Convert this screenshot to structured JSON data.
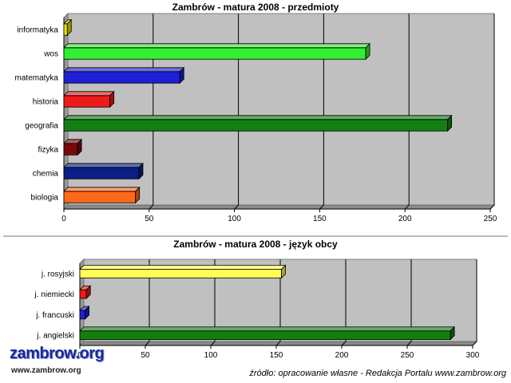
{
  "chart_data": [
    {
      "type": "bar",
      "orientation": "horizontal",
      "title": "Zambrów - matura 2008 - przedmioty",
      "categories": [
        "informatyka",
        "wos",
        "matematyka",
        "historia",
        "geografia",
        "fizyka",
        "chemia",
        "biologia"
      ],
      "values": [
        2,
        177,
        68,
        27,
        225,
        8,
        44,
        42
      ],
      "colors": [
        "#e8e800",
        "#33ee33",
        "#1f1fd6",
        "#ee1a1a",
        "#118011",
        "#7a0a0a",
        "#0c1f86",
        "#ff6a1a"
      ],
      "xlim": [
        0,
        250
      ],
      "xticks": [
        0,
        50,
        100,
        150,
        200,
        250
      ],
      "grid": true,
      "xlabel": "",
      "ylabel": ""
    },
    {
      "type": "bar",
      "orientation": "horizontal",
      "title": "Zambrów - matura 2008 - język obcy",
      "categories": [
        "j. rosyjski",
        "j. niemiecki",
        "j. francuski",
        "j. angielski"
      ],
      "values": [
        154,
        5,
        4,
        283
      ],
      "colors": [
        "#ffff55",
        "#ee1a1a",
        "#1f1fd6",
        "#118011"
      ],
      "xlim": [
        0,
        300
      ],
      "xticks": [
        0,
        50,
        100,
        150,
        200,
        250,
        300
      ],
      "grid": true,
      "xlabel": "",
      "ylabel": ""
    }
  ],
  "logo": {
    "name": "zambrow.org",
    "url": "www.zambrow.org"
  },
  "source_note": "źródło: opracowanie własne - Redakcja Portalu www.zambrow.org"
}
